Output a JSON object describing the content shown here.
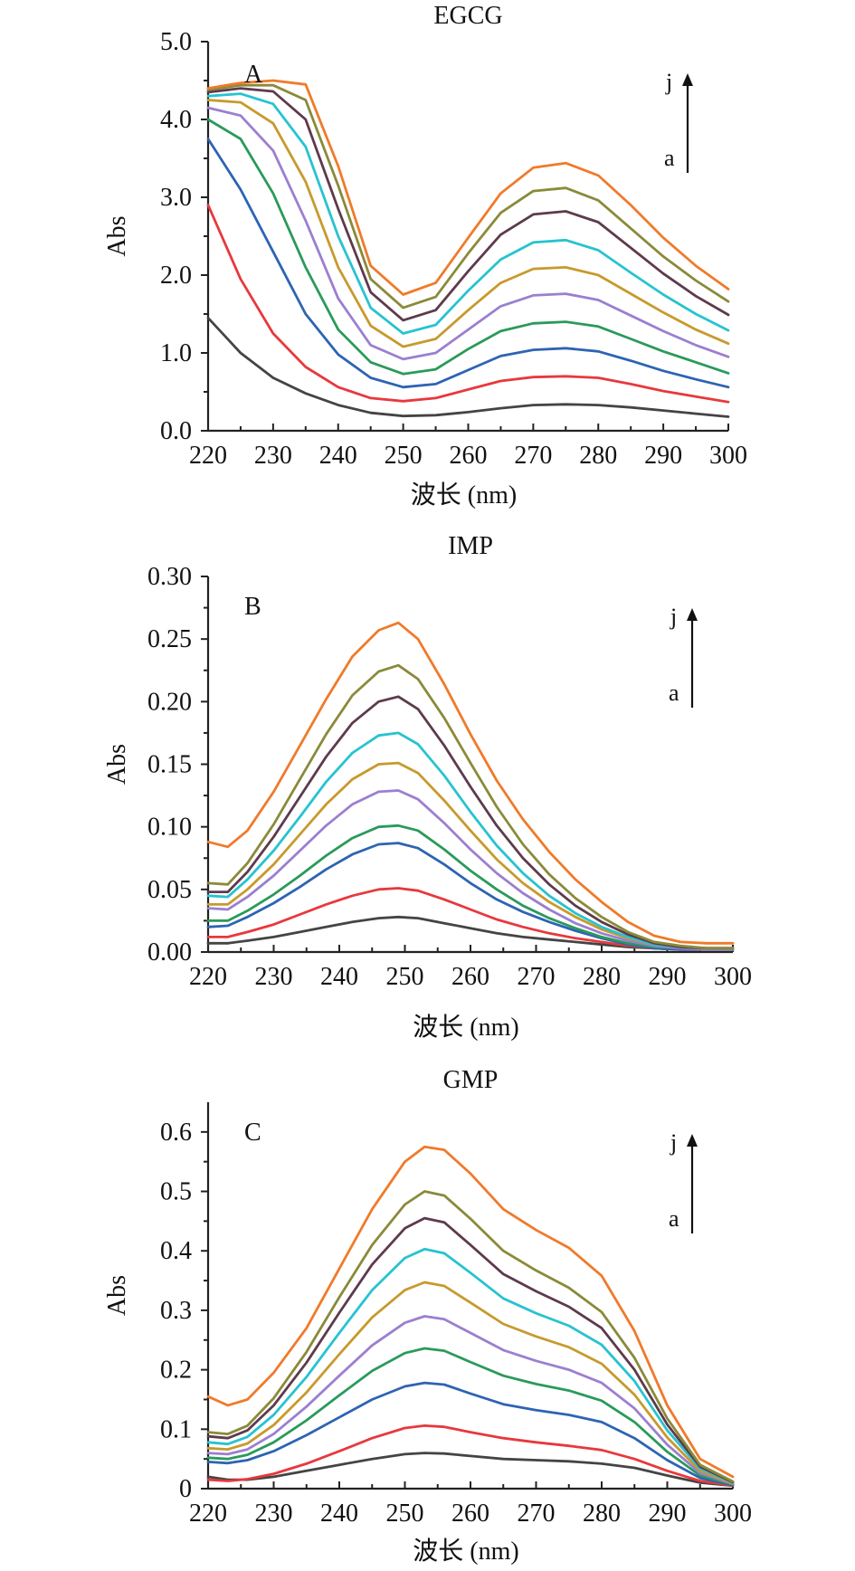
{
  "chart_data": [
    {
      "type": "line",
      "panel_label": "A",
      "title": "EGCG",
      "xlabel": "波长 (nm)",
      "ylabel": "Abs",
      "xlim": [
        220,
        300
      ],
      "ylim": [
        0,
        5
      ],
      "xticks": [
        220,
        230,
        240,
        250,
        260,
        270,
        280,
        290,
        300
      ],
      "yticks": [
        0,
        1,
        2,
        3,
        4,
        5
      ],
      "ytick_labels": [
        "0.0",
        "1.0",
        "2.0",
        "3.0",
        "4.0",
        "5.0"
      ],
      "arrow_labels": {
        "top": "j",
        "bottom": "a"
      },
      "x": [
        220,
        225,
        230,
        235,
        240,
        245,
        250,
        255,
        260,
        265,
        270,
        275,
        280,
        285,
        290,
        295,
        300
      ],
      "series": [
        {
          "values": [
            1.45,
            1.0,
            0.68,
            0.48,
            0.33,
            0.23,
            0.19,
            0.2,
            0.24,
            0.29,
            0.33,
            0.34,
            0.33,
            0.3,
            0.26,
            0.22,
            0.18
          ]
        },
        {
          "values": [
            2.9,
            1.95,
            1.25,
            0.82,
            0.56,
            0.42,
            0.38,
            0.42,
            0.53,
            0.64,
            0.69,
            0.7,
            0.68,
            0.6,
            0.51,
            0.44,
            0.37
          ]
        },
        {
          "values": [
            3.75,
            3.1,
            2.3,
            1.5,
            0.98,
            0.68,
            0.56,
            0.6,
            0.78,
            0.96,
            1.04,
            1.06,
            1.02,
            0.9,
            0.77,
            0.66,
            0.56
          ]
        },
        {
          "values": [
            4.0,
            3.75,
            3.05,
            2.1,
            1.3,
            0.88,
            0.73,
            0.79,
            1.05,
            1.28,
            1.38,
            1.4,
            1.34,
            1.18,
            1.02,
            0.88,
            0.74
          ]
        },
        {
          "values": [
            4.15,
            4.05,
            3.6,
            2.7,
            1.7,
            1.1,
            0.92,
            1.0,
            1.3,
            1.6,
            1.74,
            1.76,
            1.68,
            1.48,
            1.28,
            1.1,
            0.95
          ]
        },
        {
          "values": [
            4.25,
            4.22,
            3.95,
            3.2,
            2.1,
            1.35,
            1.08,
            1.18,
            1.55,
            1.9,
            2.08,
            2.1,
            2.0,
            1.76,
            1.52,
            1.3,
            1.12
          ]
        },
        {
          "values": [
            4.3,
            4.33,
            4.2,
            3.65,
            2.5,
            1.58,
            1.25,
            1.36,
            1.8,
            2.2,
            2.42,
            2.45,
            2.32,
            2.03,
            1.75,
            1.5,
            1.29
          ]
        },
        {
          "values": [
            4.35,
            4.4,
            4.36,
            4.0,
            2.85,
            1.78,
            1.42,
            1.55,
            2.05,
            2.52,
            2.78,
            2.82,
            2.68,
            2.35,
            2.02,
            1.73,
            1.49
          ]
        },
        {
          "values": [
            4.38,
            4.44,
            4.44,
            4.25,
            3.15,
            1.95,
            1.58,
            1.72,
            2.28,
            2.8,
            3.08,
            3.12,
            2.96,
            2.6,
            2.24,
            1.93,
            1.66
          ]
        },
        {
          "values": [
            4.4,
            4.47,
            4.5,
            4.45,
            3.4,
            2.12,
            1.75,
            1.9,
            2.48,
            3.05,
            3.38,
            3.44,
            3.28,
            2.9,
            2.48,
            2.12,
            1.82
          ]
        }
      ]
    },
    {
      "type": "line",
      "panel_label": "B",
      "title": "IMP",
      "xlabel": "波长 (nm)",
      "ylabel": "Abs",
      "xlim": [
        220,
        300
      ],
      "ylim": [
        0,
        0.3
      ],
      "xticks": [
        220,
        230,
        240,
        250,
        260,
        270,
        280,
        290,
        300
      ],
      "yticks": [
        0,
        0.05,
        0.1,
        0.15,
        0.2,
        0.25,
        0.3
      ],
      "ytick_labels": [
        "0.00",
        "0.05",
        "0.10",
        "0.15",
        "0.20",
        "0.25",
        "0.30"
      ],
      "arrow_labels": {
        "top": "j",
        "bottom": "a"
      },
      "x": [
        220,
        223,
        226,
        230,
        234,
        238,
        242,
        246,
        249,
        252,
        256,
        260,
        264,
        268,
        272,
        276,
        280,
        284,
        288,
        292,
        296,
        300
      ],
      "series": [
        {
          "values": [
            0.007,
            0.007,
            0.009,
            0.012,
            0.016,
            0.02,
            0.024,
            0.027,
            0.028,
            0.027,
            0.023,
            0.019,
            0.015,
            0.012,
            0.01,
            0.008,
            0.006,
            0.004,
            0.003,
            0.002,
            0.002,
            0.002
          ]
        },
        {
          "values": [
            0.012,
            0.012,
            0.016,
            0.022,
            0.03,
            0.038,
            0.045,
            0.05,
            0.051,
            0.049,
            0.042,
            0.034,
            0.026,
            0.02,
            0.015,
            0.011,
            0.008,
            0.005,
            0.003,
            0.002,
            0.002,
            0.002
          ]
        },
        {
          "values": [
            0.02,
            0.021,
            0.028,
            0.039,
            0.052,
            0.066,
            0.078,
            0.086,
            0.087,
            0.083,
            0.07,
            0.055,
            0.042,
            0.032,
            0.024,
            0.017,
            0.011,
            0.006,
            0.003,
            0.002,
            0.002,
            0.002
          ]
        },
        {
          "values": [
            0.025,
            0.025,
            0.033,
            0.046,
            0.061,
            0.077,
            0.091,
            0.1,
            0.101,
            0.097,
            0.082,
            0.065,
            0.05,
            0.037,
            0.027,
            0.019,
            0.012,
            0.007,
            0.004,
            0.003,
            0.002,
            0.002
          ]
        },
        {
          "values": [
            0.035,
            0.034,
            0.044,
            0.061,
            0.081,
            0.101,
            0.118,
            0.128,
            0.129,
            0.122,
            0.103,
            0.082,
            0.063,
            0.047,
            0.034,
            0.023,
            0.015,
            0.009,
            0.005,
            0.003,
            0.002,
            0.002
          ]
        },
        {
          "values": [
            0.038,
            0.038,
            0.05,
            0.07,
            0.094,
            0.118,
            0.138,
            0.15,
            0.151,
            0.143,
            0.121,
            0.097,
            0.074,
            0.055,
            0.04,
            0.028,
            0.018,
            0.011,
            0.006,
            0.004,
            0.003,
            0.003
          ]
        },
        {
          "values": [
            0.045,
            0.044,
            0.058,
            0.081,
            0.108,
            0.136,
            0.159,
            0.173,
            0.175,
            0.166,
            0.141,
            0.112,
            0.085,
            0.063,
            0.045,
            0.031,
            0.02,
            0.012,
            0.006,
            0.004,
            0.003,
            0.003
          ]
        },
        {
          "values": [
            0.048,
            0.048,
            0.064,
            0.092,
            0.124,
            0.156,
            0.183,
            0.2,
            0.204,
            0.194,
            0.165,
            0.132,
            0.101,
            0.075,
            0.054,
            0.037,
            0.024,
            0.014,
            0.007,
            0.004,
            0.003,
            0.003
          ]
        },
        {
          "values": [
            0.055,
            0.054,
            0.071,
            0.102,
            0.138,
            0.174,
            0.205,
            0.224,
            0.229,
            0.218,
            0.187,
            0.151,
            0.116,
            0.086,
            0.062,
            0.043,
            0.028,
            0.016,
            0.008,
            0.005,
            0.003,
            0.003
          ]
        },
        {
          "values": [
            0.088,
            0.084,
            0.097,
            0.128,
            0.165,
            0.202,
            0.236,
            0.257,
            0.263,
            0.25,
            0.214,
            0.174,
            0.137,
            0.106,
            0.08,
            0.058,
            0.04,
            0.024,
            0.013,
            0.008,
            0.007,
            0.007
          ]
        }
      ]
    },
    {
      "type": "line",
      "panel_label": "C",
      "title": "GMP",
      "xlabel": "波长 (nm)",
      "ylabel": "Abs",
      "xlim": [
        220,
        300
      ],
      "ylim": [
        0,
        0.65
      ],
      "xticks": [
        220,
        230,
        240,
        250,
        260,
        270,
        280,
        290,
        300
      ],
      "yticks": [
        0,
        0.1,
        0.2,
        0.3,
        0.4,
        0.5,
        0.6
      ],
      "ytick_labels": [
        "0",
        "0.1",
        "0.2",
        "0.3",
        "0.4",
        "0.5",
        "0.6"
      ],
      "arrow_labels": {
        "top": "j",
        "bottom": "a"
      },
      "x": [
        220,
        223,
        226,
        230,
        235,
        240,
        245,
        250,
        253,
        256,
        260,
        265,
        270,
        275,
        280,
        285,
        290,
        295,
        300
      ],
      "series": [
        {
          "values": [
            0.02,
            0.015,
            0.015,
            0.02,
            0.03,
            0.04,
            0.05,
            0.058,
            0.06,
            0.059,
            0.055,
            0.05,
            0.048,
            0.046,
            0.042,
            0.035,
            0.022,
            0.01,
            0.005
          ]
        },
        {
          "values": [
            0.015,
            0.013,
            0.016,
            0.025,
            0.042,
            0.063,
            0.085,
            0.102,
            0.106,
            0.104,
            0.095,
            0.085,
            0.078,
            0.072,
            0.065,
            0.05,
            0.03,
            0.013,
            0.005
          ]
        },
        {
          "values": [
            0.045,
            0.043,
            0.048,
            0.063,
            0.09,
            0.12,
            0.15,
            0.172,
            0.178,
            0.175,
            0.16,
            0.142,
            0.132,
            0.124,
            0.112,
            0.085,
            0.048,
            0.018,
            0.006
          ]
        },
        {
          "values": [
            0.052,
            0.05,
            0.057,
            0.078,
            0.115,
            0.157,
            0.198,
            0.228,
            0.236,
            0.232,
            0.213,
            0.19,
            0.176,
            0.165,
            0.148,
            0.112,
            0.062,
            0.022,
            0.007
          ]
        },
        {
          "values": [
            0.06,
            0.058,
            0.066,
            0.092,
            0.138,
            0.19,
            0.241,
            0.279,
            0.29,
            0.285,
            0.262,
            0.233,
            0.215,
            0.2,
            0.178,
            0.135,
            0.074,
            0.026,
            0.008
          ]
        },
        {
          "values": [
            0.068,
            0.066,
            0.076,
            0.107,
            0.162,
            0.226,
            0.288,
            0.334,
            0.347,
            0.341,
            0.313,
            0.277,
            0.256,
            0.238,
            0.21,
            0.158,
            0.086,
            0.03,
            0.009
          ]
        },
        {
          "values": [
            0.078,
            0.075,
            0.087,
            0.124,
            0.188,
            0.262,
            0.334,
            0.388,
            0.403,
            0.396,
            0.363,
            0.32,
            0.295,
            0.274,
            0.242,
            0.181,
            0.098,
            0.034,
            0.01
          ]
        },
        {
          "values": [
            0.088,
            0.085,
            0.098,
            0.14,
            0.212,
            0.296,
            0.377,
            0.438,
            0.455,
            0.448,
            0.41,
            0.361,
            0.332,
            0.306,
            0.27,
            0.2,
            0.108,
            0.037,
            0.011
          ]
        },
        {
          "values": [
            0.095,
            0.092,
            0.106,
            0.152,
            0.23,
            0.322,
            0.41,
            0.478,
            0.5,
            0.493,
            0.454,
            0.4,
            0.367,
            0.338,
            0.297,
            0.22,
            0.118,
            0.04,
            0.012
          ]
        },
        {
          "values": [
            0.155,
            0.14,
            0.15,
            0.195,
            0.27,
            0.37,
            0.47,
            0.55,
            0.575,
            0.57,
            0.53,
            0.47,
            0.435,
            0.405,
            0.358,
            0.265,
            0.14,
            0.05,
            0.02
          ]
        }
      ]
    }
  ],
  "series_colors": [
    "#444444",
    "#e8383d",
    "#2d64b3",
    "#2a9a5a",
    "#9b7fd0",
    "#c79a2c",
    "#27c3d0",
    "#5e3a4c",
    "#8a8a3a",
    "#f07a2a"
  ]
}
